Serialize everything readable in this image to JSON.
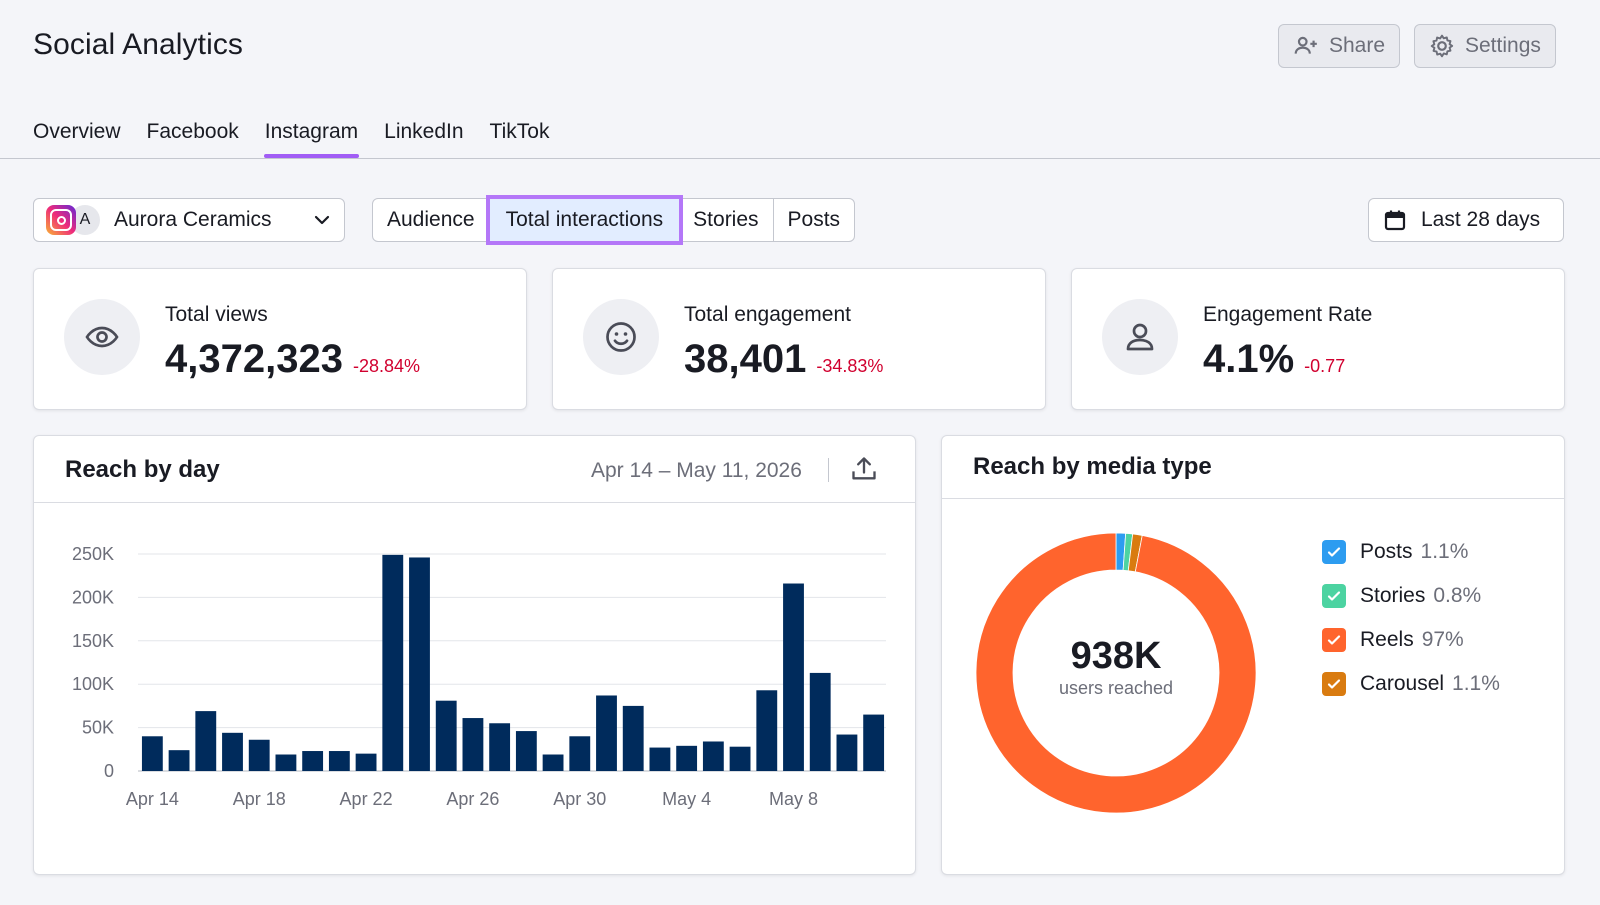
{
  "header": {
    "title": "Social Analytics",
    "share_label": "Share",
    "settings_label": "Settings"
  },
  "tabs": [
    {
      "label": "Overview",
      "active": false
    },
    {
      "label": "Facebook",
      "active": false
    },
    {
      "label": "Instagram",
      "active": true
    },
    {
      "label": "LinkedIn",
      "active": false
    },
    {
      "label": "TikTok",
      "active": false
    }
  ],
  "toolbar": {
    "profile_initial": "A",
    "profile_name": "Aurora Ceramics",
    "segments": [
      "Audience",
      "Total interactions",
      "Stories",
      "Posts"
    ],
    "active_segment": "Total interactions",
    "date_range_label": "Last 28 days"
  },
  "kpis": [
    {
      "label": "Total views",
      "value": "4,372,323",
      "delta": "-28.84%",
      "icon": "eye-icon"
    },
    {
      "label": "Total engagement",
      "value": "38,401",
      "delta": "-34.83%",
      "icon": "smiley-icon"
    },
    {
      "label": "Engagement Rate",
      "value": "4.1%",
      "delta": "-0.77",
      "icon": "user-icon"
    }
  ],
  "reach_by_day": {
    "title": "Reach by day",
    "range": "Apr 14 – May 11, 2026"
  },
  "reach_by_media": {
    "title": "Reach by media type",
    "center_value": "938K",
    "center_label": "users reached",
    "legend": [
      {
        "name": "Posts",
        "pct": "1.1%",
        "color": "#2d9cf0"
      },
      {
        "name": "Stories",
        "pct": "0.8%",
        "color": "#4cd3a1"
      },
      {
        "name": "Reels",
        "pct": "97%",
        "color": "#ff642d"
      },
      {
        "name": "Carousel",
        "pct": "1.1%",
        "color": "#d97b10"
      }
    ]
  },
  "chart_data": [
    {
      "type": "bar",
      "categories": [
        "Apr 14",
        "Apr 15",
        "Apr 16",
        "Apr 17",
        "Apr 18",
        "Apr 19",
        "Apr 20",
        "Apr 21",
        "Apr 22",
        "Apr 23",
        "Apr 24",
        "Apr 25",
        "Apr 26",
        "Apr 27",
        "Apr 28",
        "Apr 29",
        "Apr 30",
        "May 1",
        "May 2",
        "May 3",
        "May 4",
        "May 5",
        "May 6",
        "May 7",
        "May 8",
        "May 9",
        "May 10",
        "May 11"
      ],
      "values": [
        40000,
        24000,
        69000,
        44000,
        36000,
        19000,
        23000,
        23000,
        20000,
        249000,
        246000,
        81000,
        61000,
        55000,
        46000,
        19000,
        40000,
        87000,
        75000,
        27000,
        29000,
        34000,
        28000,
        93000,
        216000,
        113000,
        42000,
        65000
      ],
      "x_tick_labels": [
        "Apr 14",
        "Apr 18",
        "Apr 22",
        "Apr 26",
        "Apr 30",
        "May 4",
        "May 8"
      ],
      "y_tick_labels": [
        "0",
        "50K",
        "100K",
        "150K",
        "200K",
        "250K"
      ],
      "ylim": [
        0,
        250000
      ],
      "grid": true,
      "color": "#002b5c"
    },
    {
      "type": "pie",
      "donut": true,
      "slices": [
        {
          "name": "Posts",
          "value": 1.1,
          "color": "#2d9cf0"
        },
        {
          "name": "Stories",
          "value": 0.8,
          "color": "#4cd3a1"
        },
        {
          "name": "Carousel",
          "value": 1.1,
          "color": "#d97b10"
        },
        {
          "name": "Reels",
          "value": 97,
          "color": "#ff642d"
        }
      ]
    }
  ]
}
